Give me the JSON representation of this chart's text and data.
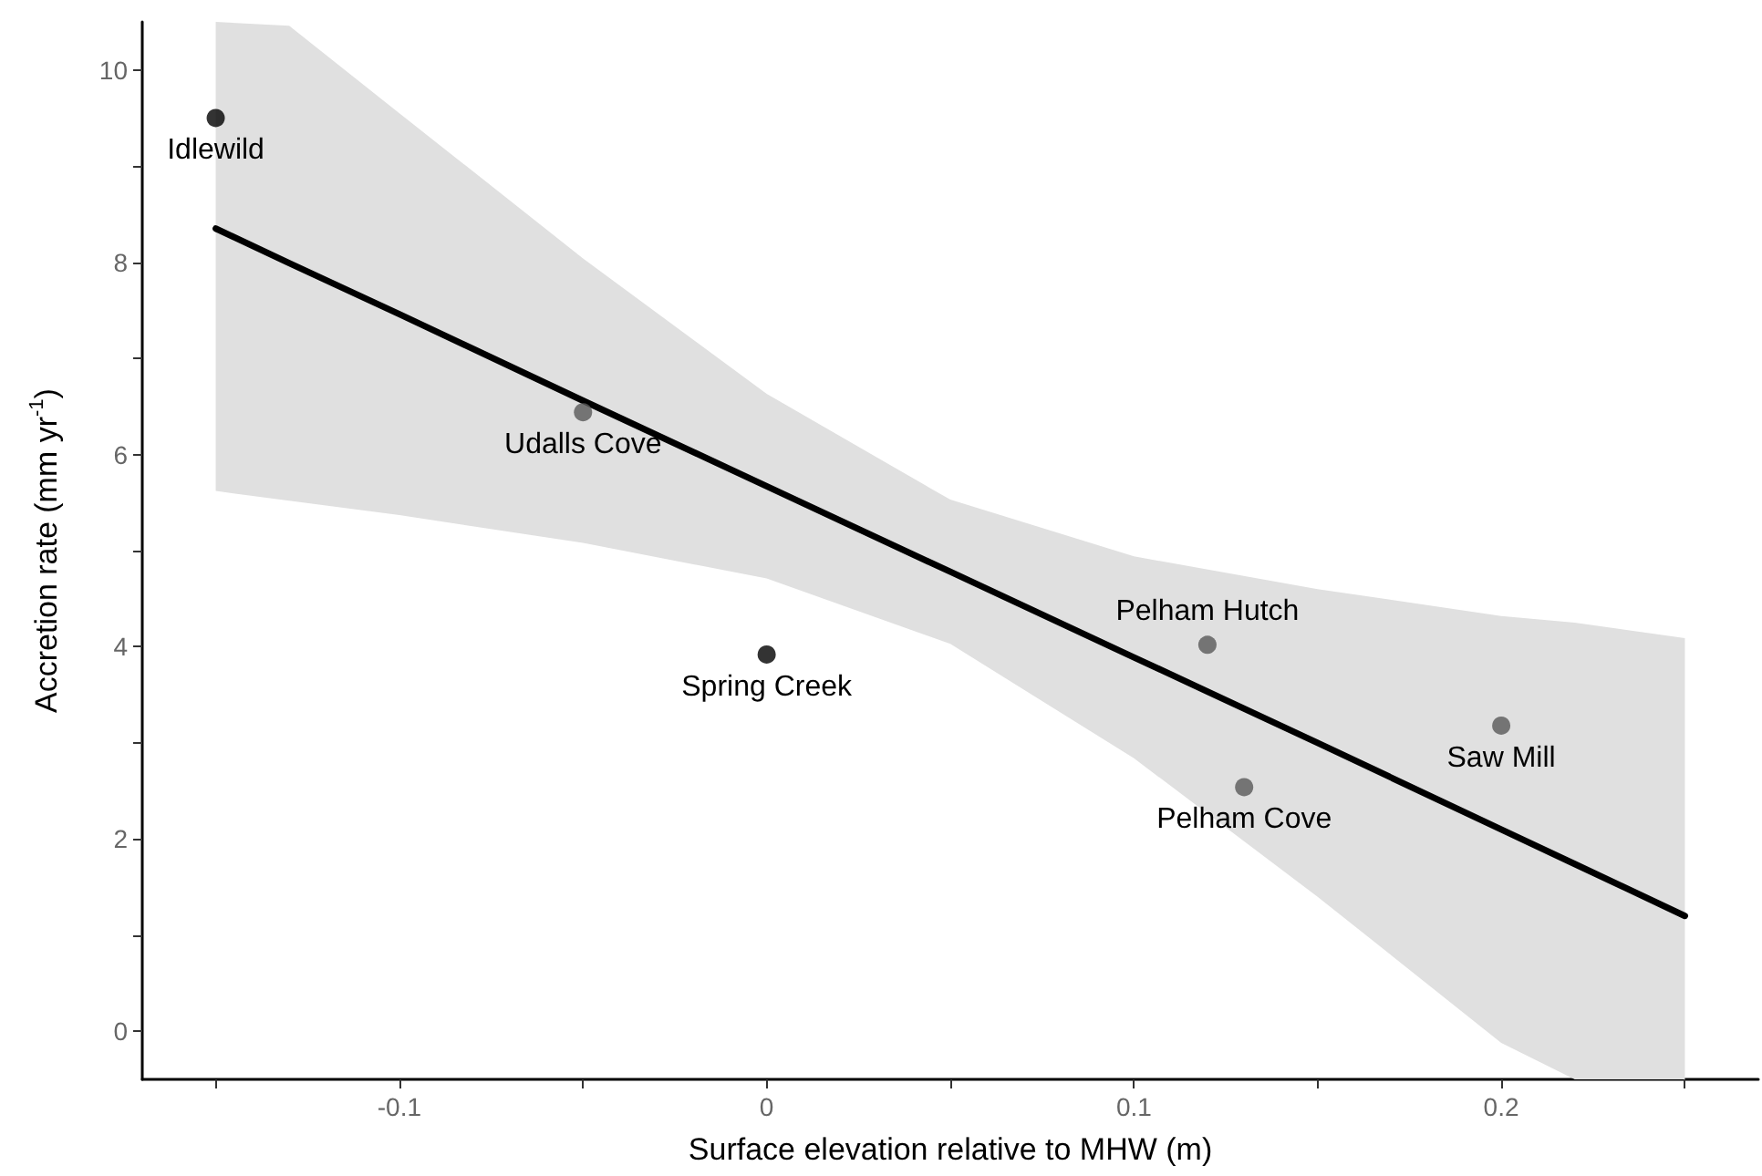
{
  "chart_data": {
    "type": "scatter",
    "xlabel": "Surface elevation relative to MHW (m)",
    "ylabel": "Accretion rate (mm yr$^{-1}$)",
    "xlim": [
      -0.17,
      0.27
    ],
    "xticks": [
      {
        "value": -0.15,
        "label": null
      },
      -0.1,
      {
        "value": -0.05,
        "label": null
      },
      0,
      {
        "value": 0.05,
        "label": null
      },
      0.1,
      {
        "value": 0.15,
        "label": null
      },
      0.2,
      {
        "value": 0.25,
        "label": null
      }
    ],
    "ylim": [
      -0.5,
      10.5
    ],
    "yticks": [
      0,
      {
        "value": 1,
        "label": null
      },
      2,
      {
        "value": 3,
        "label": null
      },
      4,
      {
        "value": 5,
        "label": null
      },
      6,
      {
        "value": 7,
        "label": null
      },
      8,
      {
        "value": 9,
        "label": null
      },
      10
    ],
    "grid": false,
    "marker": "circle",
    "series": [
      {
        "type": "line",
        "marker": "none",
        "color": "#000000",
        "x": [
          -0.15,
          -0.13,
          -0.1,
          -0.05,
          0,
          0.05,
          0.1,
          0.15,
          0.2,
          0.22,
          0.25
        ],
        "values": [
          8.35,
          7.99,
          7.46,
          6.56,
          5.67,
          4.78,
          3.89,
          3.0,
          2.1,
          1.74,
          1.2
        ],
        "lower": [
          5.62,
          5.52,
          5.37,
          5.08,
          4.71,
          4.03,
          2.84,
          1.4,
          -0.12,
          -0.5,
          -0.5
        ],
        "upper": [
          10.5,
          10.46,
          9.55,
          8.04,
          6.63,
          5.53,
          4.94,
          4.6,
          4.32,
          4.25,
          4.09
        ]
      },
      {
        "x": [
          -0.15,
          -0.05,
          0,
          0.12,
          0.13,
          0.2
        ],
        "values": [
          9.5,
          6.44,
          3.92,
          4.02,
          2.54,
          3.18
        ],
        "colors": [
          "#000000",
          "#595959",
          "#000000",
          "#595959",
          "#595959",
          "#595959"
        ]
      }
    ],
    "annotations": [
      {
        "text": "Idlewild",
        "x": -0.15,
        "y": 9.5
      },
      {
        "text": "Udalls Cove",
        "x": -0.05,
        "y": 6.44
      },
      {
        "text": "Spring Creek",
        "x": 0,
        "y": 3.92
      },
      {
        "text": "Pelham Hutch",
        "x": 0.12,
        "y": 4.02
      },
      {
        "text": "Pelham Cove",
        "x": 0.13,
        "y": 2.54
      },
      {
        "text": "Saw Mill",
        "x": 0.2,
        "y": 3.18
      }
    ]
  }
}
